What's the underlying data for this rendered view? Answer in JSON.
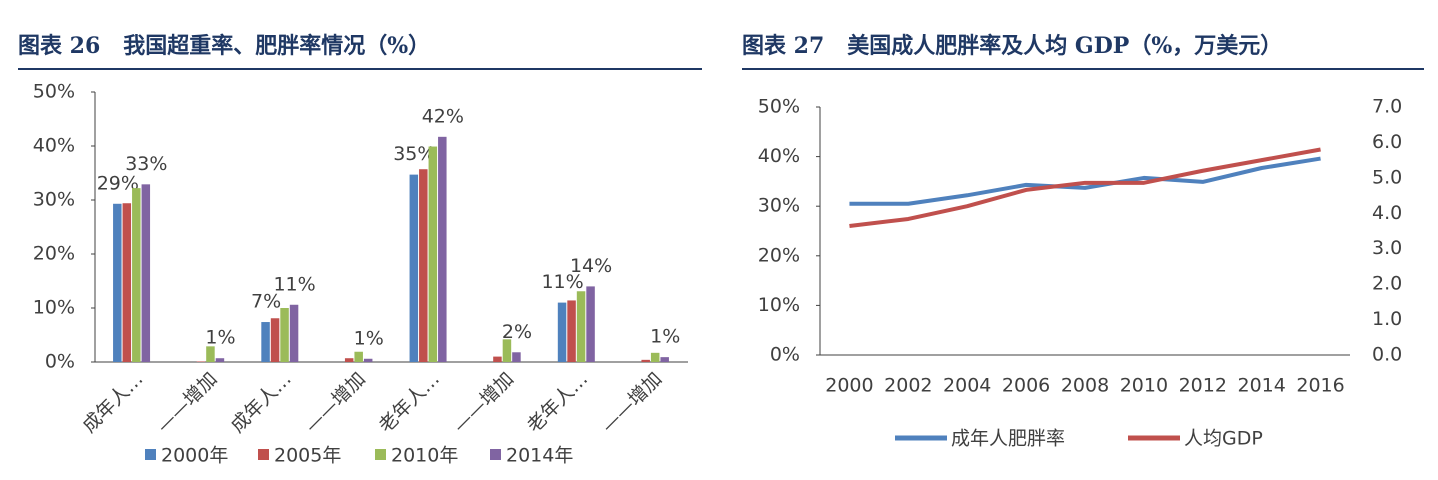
{
  "chart_data": [
    {
      "type": "bar",
      "title": "图表 26   我国超重率、肥胖率情况（%）",
      "categories": [
        "成年人…",
        "——增加",
        "成年人…",
        "——增加",
        "老年人…",
        "——增加",
        "老年人…",
        "——增加"
      ],
      "series": [
        {
          "name": "2000年",
          "color": "#4f81bd",
          "values": [
            29.3,
            null,
            7.4,
            null,
            34.7,
            null,
            11.0,
            null
          ],
          "value_labels": [
            "29%",
            null,
            "7%",
            null,
            "35%",
            null,
            "11%",
            null
          ]
        },
        {
          "name": "2005年",
          "color": "#c0504d",
          "values": [
            29.4,
            0.1,
            8.1,
            0.7,
            35.7,
            1.0,
            11.4,
            0.4
          ]
        },
        {
          "name": "2010年",
          "color": "#9bbb59",
          "values": [
            32.2,
            2.9,
            10.0,
            1.9,
            39.9,
            4.2,
            13.1,
            1.7
          ]
        },
        {
          "name": "2014年",
          "color": "#8064a2",
          "values": [
            32.9,
            0.7,
            10.6,
            0.6,
            41.7,
            1.8,
            14.0,
            0.9
          ],
          "value_labels": [
            "33%",
            "1%",
            "11%",
            "1%",
            "42%",
            "2%",
            "14%",
            "1%"
          ]
        }
      ],
      "ylim": [
        0,
        50
      ],
      "yticks": [
        {
          "value": 0,
          "label": "0%"
        },
        {
          "value": 10,
          "label": "10%"
        },
        {
          "value": 20,
          "label": "20%"
        },
        {
          "value": 30,
          "label": "30%"
        },
        {
          "value": 40,
          "label": "40%"
        },
        {
          "value": 50,
          "label": "50%"
        }
      ],
      "legend": "bottom",
      "grid": false
    },
    {
      "type": "line",
      "title": "图表 27   美国成人肥胖率及人均 GDP（%，万美元）",
      "categories": [
        "2000",
        "2002",
        "2004",
        "2006",
        "2008",
        "2010",
        "2012",
        "2014",
        "2016"
      ],
      "series": [
        {
          "name": "成年人肥胖率",
          "color": "#4f81bd",
          "values": [
            30.5,
            30.5,
            32.2,
            34.3,
            33.7,
            35.7,
            34.9,
            37.7,
            39.6
          ]
        },
        {
          "name": "人均GDP",
          "color": "#c0504d",
          "axis": "y2",
          "values": [
            3.64,
            3.84,
            4.2,
            4.66,
            4.86,
            4.86,
            5.2,
            5.5,
            5.8
          ]
        }
      ],
      "ylim": [
        0,
        50
      ],
      "yticks": [
        {
          "value": 0,
          "label": "0%"
        },
        {
          "value": 10,
          "label": "10%"
        },
        {
          "value": 20,
          "label": "20%"
        },
        {
          "value": 30,
          "label": "30%"
        },
        {
          "value": 40,
          "label": "40%"
        },
        {
          "value": 50,
          "label": "50%"
        }
      ],
      "y2lim": [
        0,
        7
      ],
      "y2ticks": [
        {
          "value": 0,
          "label": "0.0"
        },
        {
          "value": 1,
          "label": "1.0"
        },
        {
          "value": 2,
          "label": "2.0"
        },
        {
          "value": 3,
          "label": "3.0"
        },
        {
          "value": 4,
          "label": "4.0"
        },
        {
          "value": 5,
          "label": "5.0"
        },
        {
          "value": 6,
          "label": "6.0"
        },
        {
          "value": 7,
          "label": "7.0"
        }
      ],
      "legend": "bottom",
      "grid": false
    }
  ]
}
